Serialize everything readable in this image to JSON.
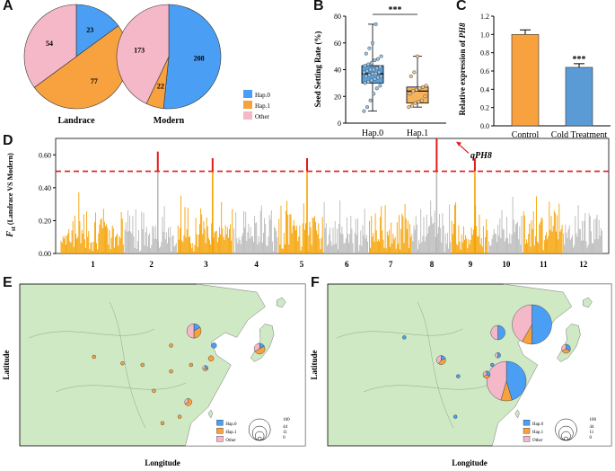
{
  "panels": {
    "A": "A",
    "B": "B",
    "C": "C",
    "D": "D",
    "E": "E",
    "F": "F"
  },
  "colors": {
    "hap0": "#4a9ff5",
    "hap1": "#f7a23e",
    "other": "#f4b8c8",
    "manhattan_orange": "#f5a100",
    "manhattan_gray": "#b9b9b9",
    "peak_red": "#e21b1b",
    "land": "#cfe9c4",
    "sea": "#ffffff",
    "box_blue": "#5aa0dc",
    "box_orange": "#f7b35a",
    "bar_control": "#f7a23e",
    "bar_cold": "#5b9bd5"
  },
  "legend": {
    "hap0": "Hap.0",
    "hap1": "Hap.1",
    "other": "Other"
  },
  "pie_landrace": {
    "title": "Landrace",
    "values": {
      "hap0": 23,
      "hap1": 77,
      "other": 54
    }
  },
  "pie_modern": {
    "title": "Modern",
    "values": {
      "hap0": 208,
      "hap1": 22,
      "other": 173
    }
  },
  "chart_data": [
    {
      "type": "pie",
      "title": "Landrace",
      "categories": [
        "Hap.0",
        "Hap.1",
        "Other"
      ],
      "values": [
        23,
        77,
        54
      ]
    },
    {
      "type": "pie",
      "title": "Modern",
      "categories": [
        "Hap.0",
        "Hap.1",
        "Other"
      ],
      "values": [
        208,
        22,
        173
      ]
    },
    {
      "type": "box",
      "ylabel": "Seed Setting Rate  (%)",
      "categories": [
        "Hap.0",
        "Hap.1"
      ],
      "ylim": [
        0,
        80
      ],
      "yticks": [
        0,
        20,
        40,
        60,
        80
      ],
      "significance": "***",
      "boxes": [
        {
          "name": "Hap.0",
          "min": 9,
          "q1": 30,
          "median": 37,
          "q3": 43,
          "max": 74,
          "points": [
            9,
            12,
            17,
            22,
            26,
            28,
            30,
            31,
            32,
            33,
            34,
            35,
            35,
            36,
            37,
            37,
            38,
            38,
            39,
            40,
            40,
            41,
            42,
            43,
            44,
            45,
            47,
            48,
            50,
            52,
            56,
            60,
            74
          ]
        },
        {
          "name": "Hap.1",
          "min": 12,
          "q1": 15,
          "median": 24,
          "q3": 27,
          "max": 50,
          "points": [
            12,
            13,
            15,
            16,
            17,
            20,
            22,
            24,
            25,
            26,
            27,
            28,
            35,
            38,
            50
          ]
        }
      ]
    },
    {
      "type": "bar",
      "ylabel": "Relative expression of PH8",
      "categories": [
        "Control",
        "Cold Treatment"
      ],
      "values": [
        1.0,
        0.64
      ],
      "errors": [
        0.05,
        0.04
      ],
      "ylim": [
        0,
        1.2
      ],
      "yticks": [
        0.0,
        0.2,
        0.4,
        0.6,
        0.8,
        1.0,
        1.2
      ],
      "significance": [
        "",
        "***"
      ]
    },
    {
      "type": "manhattan",
      "ylabel_main": "F",
      "ylabel_sub": "st",
      "ylabel_rest": " (Landrace VS Modern)",
      "chromosomes": [
        "1",
        "2",
        "3",
        "4",
        "5",
        "6",
        "7",
        "8",
        "9",
        "10",
        "11",
        "12"
      ],
      "ylim": [
        0,
        0.7
      ],
      "yticks": [
        "0.00",
        "0.20",
        "0.40",
        "0.60"
      ],
      "threshold": 0.5,
      "annotation": "qPH8"
    }
  ],
  "maps": {
    "xlabel": "Longitude",
    "ylabel": "Latitude",
    "size_legend": [
      "100",
      "44",
      "11",
      "0"
    ]
  }
}
